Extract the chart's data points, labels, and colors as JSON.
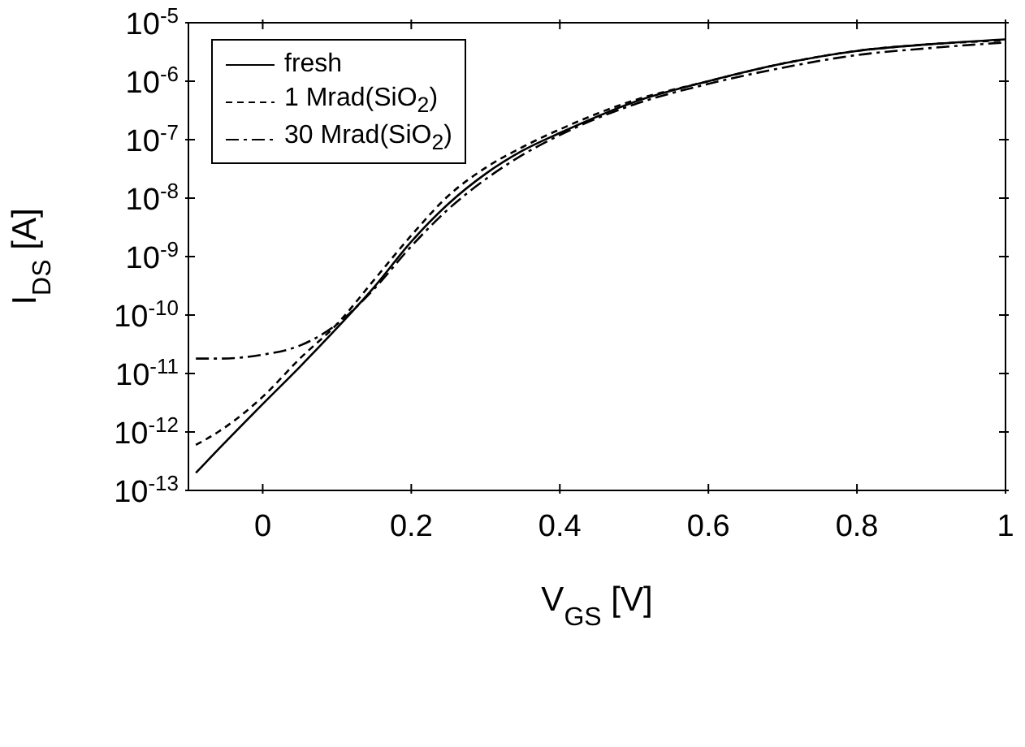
{
  "chart_data": {
    "type": "line",
    "xlabel": "V$_{GS}$ [V]",
    "ylabel": "I$_{DS}$ [A]",
    "log": "y",
    "legend": "top left",
    "marker": "none",
    "x": [
      -0.09,
      -0.06,
      0,
      0.05,
      0.1,
      0.15,
      0.2,
      0.25,
      0.3,
      0.35,
      0.4,
      0.5,
      0.6,
      0.7,
      0.8,
      0.9,
      1.0
    ],
    "series": [
      {
        "name": "fresh",
        "color": "#000000",
        "line_style": "solid",
        "values": [
          2e-13,
          5e-13,
          3e-12,
          1.3e-11,
          6e-11,
          3e-10,
          1.8e-09,
          8e-09,
          2.6e-08,
          6.5e-08,
          1.3e-07,
          4.4e-07,
          1e-06,
          2e-06,
          3.3e-06,
          4.3e-06,
          5.2e-06
        ]
      },
      {
        "name": "1 Mrad(SiO$_{2}$)",
        "color": "#000000",
        "line_style": "dashed",
        "values": [
          6e-13,
          1e-12,
          4e-12,
          1.8e-11,
          7e-11,
          4e-10,
          2.3e-09,
          1.1e-08,
          3.3e-08,
          7.5e-08,
          1.5e-07,
          4.7e-07,
          1e-06,
          2e-06,
          3.3e-06,
          4.3e-06,
          5e-06
        ]
      },
      {
        "name": "30 Mrad(SiO$_{2}$)",
        "color": "#000000",
        "line_style": "dashdot",
        "values": [
          1.8e-11,
          1.8e-11,
          2.1e-11,
          3e-11,
          7e-11,
          2.8e-10,
          1.5e-09,
          6.5e-09,
          2.1e-08,
          5.5e-08,
          1.2e-07,
          4e-07,
          9e-07,
          1.7e-06,
          2.8e-06,
          3.7e-06,
          4.6e-06
        ]
      }
    ],
    "xlim": [
      -0.1,
      1.0
    ],
    "xticks": [
      0,
      0.2,
      0.4,
      0.6,
      0.8,
      1
    ],
    "ylim": [
      1e-13,
      1e-05
    ],
    "yticks": [
      {
        "value": 1e-13,
        "label": "10$^{-13}$"
      },
      {
        "value": 1e-12,
        "label": "10$^{-12}$"
      },
      {
        "value": 1e-11,
        "label": "10$^{-11}$"
      },
      {
        "value": 1e-10,
        "label": "10$^{-10}$"
      },
      {
        "value": 1e-09,
        "label": "10$^{-9}$"
      },
      {
        "value": 1e-08,
        "label": "10$^{-8}$"
      },
      {
        "value": 1e-07,
        "label": "10$^{-7}$"
      },
      {
        "value": 1e-06,
        "label": "10$^{-6}$"
      },
      {
        "value": 1e-05,
        "label": "10$^{-5}$"
      }
    ]
  }
}
